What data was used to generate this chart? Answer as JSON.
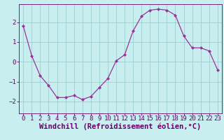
{
  "x": [
    0,
    1,
    2,
    3,
    4,
    5,
    6,
    7,
    8,
    9,
    10,
    11,
    12,
    13,
    14,
    15,
    16,
    17,
    18,
    19,
    20,
    21,
    22,
    23
  ],
  "y": [
    1.8,
    0.3,
    -0.7,
    -1.2,
    -1.8,
    -1.8,
    -1.7,
    -1.9,
    -1.75,
    -1.3,
    -0.85,
    0.05,
    0.35,
    1.55,
    2.3,
    2.6,
    2.65,
    2.6,
    2.35,
    1.3,
    0.7,
    0.7,
    0.55,
    -0.4
  ],
  "line_color": "#993399",
  "marker": "D",
  "marker_size": 2.0,
  "bg_color": "#c8eef0",
  "grid_color": "#9ecece",
  "xlabel": "Windchill (Refroidissement éolien,°C)",
  "xlabel_color": "#660066",
  "xlabel_fontsize": 7.5,
  "tick_color": "#660066",
  "tick_fontsize": 6.5,
  "xlim": [
    -0.5,
    23.5
  ],
  "ylim": [
    -2.6,
    2.9
  ],
  "yticks": [
    -2,
    -1,
    0,
    1,
    2
  ],
  "xticks": [
    0,
    1,
    2,
    3,
    4,
    5,
    6,
    7,
    8,
    9,
    10,
    11,
    12,
    13,
    14,
    15,
    16,
    17,
    18,
    19,
    20,
    21,
    22,
    23
  ]
}
